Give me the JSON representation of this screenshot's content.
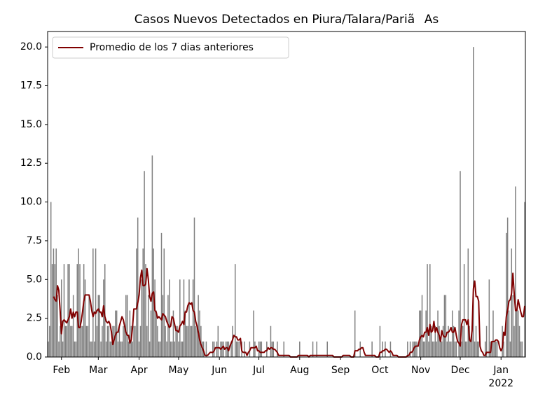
{
  "chart_data": {
    "type": "bar",
    "title": "Casos Nuevos Detectados en Piura/Talara/PariãAs",
    "color": "#808080",
    "categories": [
      null,
      null,
      null,
      null,
      null,
      null,
      null,
      null,
      null,
      null,
      "Feb",
      null,
      null,
      null,
      null,
      null,
      null,
      null,
      null,
      null,
      null,
      null,
      null,
      null,
      null,
      null,
      null,
      null,
      null,
      null,
      null,
      null,
      null,
      null,
      null,
      null,
      null,
      null,
      "Mar",
      null,
      null,
      null,
      null,
      null,
      null,
      null,
      null,
      null,
      null,
      null,
      null,
      null,
      null,
      null,
      null,
      null,
      null,
      null,
      null,
      null,
      null,
      null,
      null,
      null,
      null,
      null,
      null,
      null,
      null,
      "Apr",
      null,
      null,
      null,
      null,
      null,
      null,
      null,
      null,
      null,
      null,
      null,
      null,
      null,
      null,
      null,
      null,
      null,
      null,
      null,
      null,
      null,
      null,
      null,
      null,
      null,
      null,
      null,
      null,
      null,
      "May",
      null,
      null,
      null,
      null,
      null,
      null,
      null,
      null,
      null,
      null,
      null,
      null,
      null,
      null,
      null,
      null,
      null,
      null,
      null,
      null,
      null,
      null,
      null,
      null,
      null,
      null,
      null,
      null,
      null,
      null,
      "Jun",
      null,
      null,
      null,
      null,
      null,
      null,
      null,
      null,
      null,
      null,
      null,
      null,
      null,
      null,
      null,
      null,
      null,
      null,
      null,
      null,
      null,
      null,
      null,
      null,
      null,
      null,
      null,
      null,
      null,
      "Jul",
      null,
      null,
      null,
      null,
      null,
      null,
      null,
      null,
      null,
      null,
      null,
      null,
      null,
      null,
      null,
      null,
      null,
      null,
      null,
      null,
      null,
      null,
      null,
      null,
      null,
      null,
      null,
      null,
      null,
      null,
      "Aug",
      null,
      null,
      null,
      null,
      null,
      null,
      null,
      null,
      null,
      null,
      null,
      null,
      null,
      null,
      null,
      null,
      null,
      null,
      null,
      null,
      null,
      null,
      null,
      null,
      null,
      null,
      null,
      null,
      null,
      null,
      "Sep",
      null,
      null,
      null,
      null,
      null,
      null,
      null,
      null,
      null,
      null,
      null,
      null,
      null,
      null,
      null,
      null,
      null,
      null,
      null,
      null,
      null,
      null,
      null,
      null,
      null,
      null,
      null,
      null,
      null,
      "Oct",
      null,
      null,
      null,
      null,
      null,
      null,
      null,
      null,
      null,
      null,
      null,
      null,
      null,
      null,
      null,
      null,
      null,
      null,
      null,
      null,
      null,
      null,
      null,
      null,
      null,
      null,
      null,
      null,
      null,
      null,
      "Nov",
      null,
      null,
      null,
      null,
      null,
      null,
      null,
      null,
      null,
      null,
      null,
      null,
      null,
      null,
      null,
      null,
      null,
      null,
      null,
      null,
      null,
      null,
      null,
      null,
      null,
      null,
      null,
      null,
      null,
      "Dec",
      null,
      null,
      null,
      null,
      null,
      null,
      null,
      null,
      null,
      null,
      null,
      null,
      null,
      null,
      null,
      null,
      null,
      null,
      null,
      null,
      null,
      null,
      null,
      null,
      null,
      null,
      null,
      null,
      null,
      null,
      "Jan\n2022",
      null,
      null,
      null,
      null,
      null,
      null,
      null,
      null,
      null,
      null,
      null,
      null,
      null,
      null,
      null,
      null,
      null,
      null
    ],
    "values": [
      1,
      2,
      10,
      6,
      7,
      6,
      7,
      4,
      1,
      2,
      5,
      1,
      6,
      2,
      2,
      6,
      6,
      2,
      2,
      4,
      1,
      1,
      6,
      7,
      6,
      2,
      2,
      6,
      5,
      2,
      2,
      4,
      1,
      1,
      7,
      1,
      7,
      2,
      4,
      4,
      1,
      2,
      5,
      6,
      1,
      2,
      2,
      1,
      1,
      2,
      2,
      3,
      3,
      1,
      2,
      1,
      1,
      2,
      2,
      4,
      4,
      1,
      3,
      2,
      1,
      2,
      2,
      7,
      9,
      1,
      2,
      5,
      7,
      12,
      6,
      2,
      4,
      1,
      3,
      13,
      7,
      5,
      3,
      2,
      1,
      1,
      8,
      4,
      7,
      2,
      1,
      4,
      5,
      1,
      1,
      3,
      1,
      2,
      2,
      1,
      5,
      1,
      1,
      5,
      3,
      2,
      2,
      5,
      2,
      2,
      5,
      9,
      2,
      2,
      4,
      3,
      2,
      1,
      1,
      0,
      1,
      0,
      0,
      0,
      0,
      1,
      1,
      0,
      1,
      2,
      0,
      1,
      1,
      1,
      0,
      1,
      1,
      1,
      0,
      1,
      2,
      0,
      6,
      1,
      1,
      1,
      0,
      1,
      0,
      1,
      0,
      0,
      0,
      1,
      0,
      0,
      3,
      1,
      0,
      0,
      1,
      1,
      1,
      0,
      0,
      0,
      1,
      0,
      0,
      2,
      1,
      1,
      0,
      0,
      1,
      0,
      0,
      0,
      0,
      1,
      0,
      0,
      0,
      0,
      0,
      0,
      0,
      0,
      0,
      0,
      0,
      1,
      0,
      0,
      0,
      0,
      0,
      0,
      0,
      0,
      0,
      1,
      0,
      0,
      1,
      0,
      0,
      0,
      0,
      0,
      0,
      0,
      1,
      0,
      0,
      0,
      0,
      0,
      0,
      0,
      0,
      0,
      0,
      0,
      0,
      0,
      0,
      0,
      0,
      0,
      0,
      0,
      0,
      3,
      0,
      0,
      0,
      1,
      0,
      0,
      0,
      0,
      0,
      0,
      0,
      0,
      1,
      0,
      0,
      0,
      0,
      0,
      2,
      0,
      1,
      0,
      1,
      0,
      0,
      0,
      1,
      0,
      0,
      0,
      0,
      0,
      0,
      0,
      0,
      0,
      0,
      0,
      0,
      1,
      0,
      1,
      0,
      1,
      1,
      1,
      1,
      0,
      3,
      3,
      4,
      1,
      1,
      3,
      6,
      1,
      6,
      2,
      1,
      1,
      2,
      1,
      3,
      2,
      1,
      1,
      2,
      4,
      4,
      1,
      2,
      1,
      1,
      3,
      2,
      1,
      1,
      0,
      3,
      12,
      1,
      2,
      6,
      1,
      1,
      7,
      2,
      1,
      2,
      20,
      1,
      2,
      1,
      1,
      0,
      0,
      0,
      0,
      1,
      2,
      0,
      5,
      1,
      1,
      3,
      1,
      1,
      1,
      0,
      0,
      0,
      2,
      1,
      0,
      8,
      9,
      3,
      1,
      7,
      4,
      2,
      11,
      3,
      3,
      2,
      1,
      1,
      0,
      10
    ],
    "series": [
      {
        "name": "Promedio de los 7 dias anteriores",
        "color": "#800000",
        "type": "line",
        "values": [
          null,
          null,
          null,
          null,
          3.9,
          3.7,
          3.6,
          4.6,
          4.3,
          3.0,
          1.5,
          2.3,
          2.4,
          2.3,
          2.2,
          2.4,
          2.6,
          3.1,
          2.5,
          2.9,
          2.6,
          2.9,
          2.9,
          1.9,
          1.9,
          2.3,
          2.9,
          3.6,
          4.0,
          4.0,
          4.0,
          4.0,
          3.6,
          3.0,
          2.6,
          2.9,
          2.8,
          3.0,
          3.1,
          2.9,
          2.9,
          2.6,
          3.3,
          2.6,
          2.3,
          2.2,
          2.3,
          2.1,
          1.6,
          0.8,
          1.1,
          1.4,
          1.6,
          1.6,
          2.0,
          2.3,
          2.6,
          2.4,
          2.0,
          1.6,
          1.4,
          1.4,
          0.9,
          1.1,
          1.9,
          3.1,
          3.1,
          3.1,
          3.5,
          4.0,
          5.1,
          5.6,
          4.6,
          4.6,
          4.7,
          5.7,
          5.0,
          3.9,
          3.6,
          4.1,
          4.2,
          3.0,
          2.9,
          2.5,
          2.6,
          2.5,
          2.4,
          2.8,
          2.7,
          2.6,
          2.3,
          2.1,
          1.9,
          2.0,
          2.6,
          2.5,
          2.1,
          1.7,
          1.7,
          1.6,
          2.0,
          2.1,
          2.3,
          2.1,
          2.9,
          2.9,
          3.3,
          3.5,
          3.4,
          3.5,
          3.0,
          2.9,
          2.3,
          2.0,
          1.6,
          1.1,
          0.8,
          0.6,
          0.4,
          0.1,
          0.1,
          0.1,
          0.2,
          0.3,
          0.3,
          0.3,
          0.4,
          0.6,
          0.6,
          0.6,
          0.6,
          0.5,
          0.6,
          0.7,
          0.5,
          0.6,
          0.6,
          0.4,
          0.7,
          0.9,
          1.1,
          1.4,
          1.3,
          1.3,
          1.1,
          1.1,
          1.2,
          0.4,
          0.3,
          0.3,
          0.3,
          0.1,
          0.3,
          0.4,
          0.6,
          0.6,
          0.6,
          0.6,
          0.7,
          0.4,
          0.4,
          0.3,
          0.3,
          0.3,
          0.3,
          0.4,
          0.4,
          0.6,
          0.5,
          0.6,
          0.6,
          0.5,
          0.5,
          0.4,
          0.3,
          0.1,
          0.1,
          0.1,
          0.1,
          0.1,
          0.1,
          0.1,
          0.1,
          0.1,
          0,
          0,
          0,
          0,
          0,
          0,
          0.1,
          0.1,
          0.1,
          0.1,
          0.1,
          0.1,
          0.1,
          0.1,
          0.0,
          0.1,
          0.1,
          0.1,
          0.1,
          0.1,
          0.1,
          0.1,
          0.1,
          0.1,
          0.1,
          0.1,
          0.1,
          0.1,
          0.1,
          0.1,
          0.1,
          0.1,
          0.1,
          0,
          0,
          0,
          0,
          0,
          0,
          0,
          0.1,
          0.1,
          0.1,
          0.1,
          0.1,
          0.1,
          0,
          0,
          0,
          0.4,
          0.4,
          0.4,
          0.5,
          0.5,
          0.6,
          0.6,
          0.3,
          0.1,
          0.1,
          0.1,
          0.1,
          0.1,
          0.1,
          0.1,
          0.1,
          0,
          0,
          0,
          0.3,
          0.3,
          0.4,
          0.4,
          0.5,
          0.5,
          0.4,
          0.3,
          0.4,
          0.3,
          0.1,
          0.1,
          0.1,
          0.1,
          0,
          0,
          0,
          0,
          0,
          0,
          0,
          0.1,
          0.1,
          0.3,
          0.3,
          0.4,
          0.6,
          0.7,
          0.7,
          0.7,
          1.1,
          1.3,
          1.4,
          1.3,
          1.6,
          1.6,
          1.9,
          1.4,
          2.1,
          1.6,
          1.7,
          2.3,
          1.6,
          1.9,
          1.6,
          1.4,
          1.0,
          1.7,
          1.4,
          1.3,
          1.3,
          1.6,
          1.6,
          1.7,
          1.9,
          1.6,
          1.6,
          1.9,
          1.4,
          1.0,
          0.9,
          0.7,
          2.1,
          2.4,
          2.4,
          2.4,
          2.1,
          2.4,
          1.1,
          1.0,
          1.7,
          4.4,
          4.9,
          3.9,
          3.9,
          3.6,
          0.7,
          0.4,
          0.3,
          0.1,
          0.1,
          0.3,
          0.3,
          0.3,
          0.3,
          1.0,
          1.0,
          1.0,
          1.1,
          1.1,
          1.0,
          0.6,
          0.4,
          0.6,
          1.6,
          1.4,
          2.6,
          3.0,
          3.6,
          3.7,
          4.1,
          5.4,
          4.1,
          3.0,
          3.0,
          3.7,
          3.3,
          2.9,
          2.6,
          2.6,
          3.3
        ]
      }
    ],
    "ylim": [
      0,
      21
    ],
    "yticks": [
      {
        "value": 0,
        "label": "0.0"
      },
      {
        "value": 2.5,
        "label": "2.5"
      },
      {
        "value": 5,
        "label": "5.0"
      },
      {
        "value": 7.5,
        "label": "7.5"
      },
      {
        "value": 10,
        "label": "10.0"
      },
      {
        "value": 12.5,
        "label": "12.5"
      },
      {
        "value": 15,
        "label": "15.0"
      },
      {
        "value": 17.5,
        "label": "17.5"
      },
      {
        "value": 20,
        "label": "20.0"
      }
    ],
    "legend": "upper left"
  }
}
